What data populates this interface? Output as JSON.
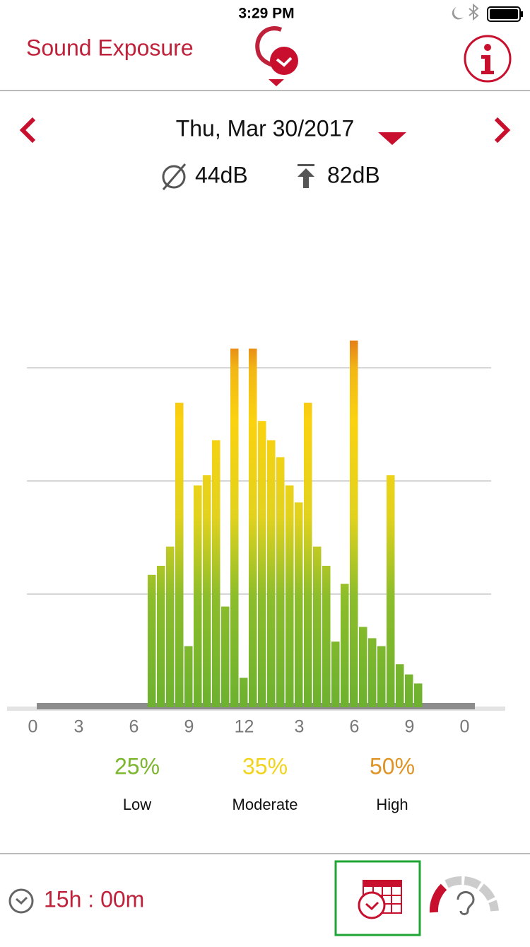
{
  "status_bar": {
    "time": "3:29 PM"
  },
  "header": {
    "title": "Sound Exposure"
  },
  "date": "Thu, Mar 30/2017",
  "stats": {
    "average": "44dB",
    "peak": "82dB"
  },
  "chart_data": {
    "type": "bar",
    "categories": [
      "0",
      null,
      null,
      null,
      null,
      "3",
      null,
      null,
      null,
      null,
      null,
      "6",
      null,
      null,
      null,
      null,
      null,
      "9",
      null,
      null,
      null,
      null,
      null,
      "12",
      null,
      null,
      null,
      null,
      null,
      "3",
      null,
      null,
      null,
      null,
      null,
      "6",
      null,
      null,
      null,
      null,
      null,
      "9",
      null,
      null,
      null,
      null,
      null,
      "0"
    ],
    "values": [
      0,
      0,
      0,
      0,
      0,
      0,
      0,
      0,
      0,
      0,
      0,
      0,
      0,
      1.17,
      1.25,
      1.42,
      2.69,
      0.54,
      1.96,
      2.05,
      2.36,
      0.89,
      3.17,
      0.26,
      3.17,
      2.53,
      2.36,
      2.21,
      1.96,
      1.81,
      2.69,
      1.42,
      1.25,
      0.58,
      1.09,
      3.24,
      0.71,
      0.61,
      0.54,
      2.05,
      0.38,
      0.29,
      0.21,
      0,
      0,
      0,
      0,
      0
    ],
    "ylim": [
      0,
      4.5
    ],
    "grid": [
      1,
      2,
      3
    ]
  },
  "levels": [
    {
      "percent": "25%",
      "label": "Low",
      "color": "#7bb62e"
    },
    {
      "percent": "35%",
      "label": "Moderate",
      "color": "#f2d31c"
    },
    {
      "percent": "50%",
      "label": "High",
      "color": "#df9324"
    }
  ],
  "footer": {
    "duration": "15h : 00m"
  }
}
